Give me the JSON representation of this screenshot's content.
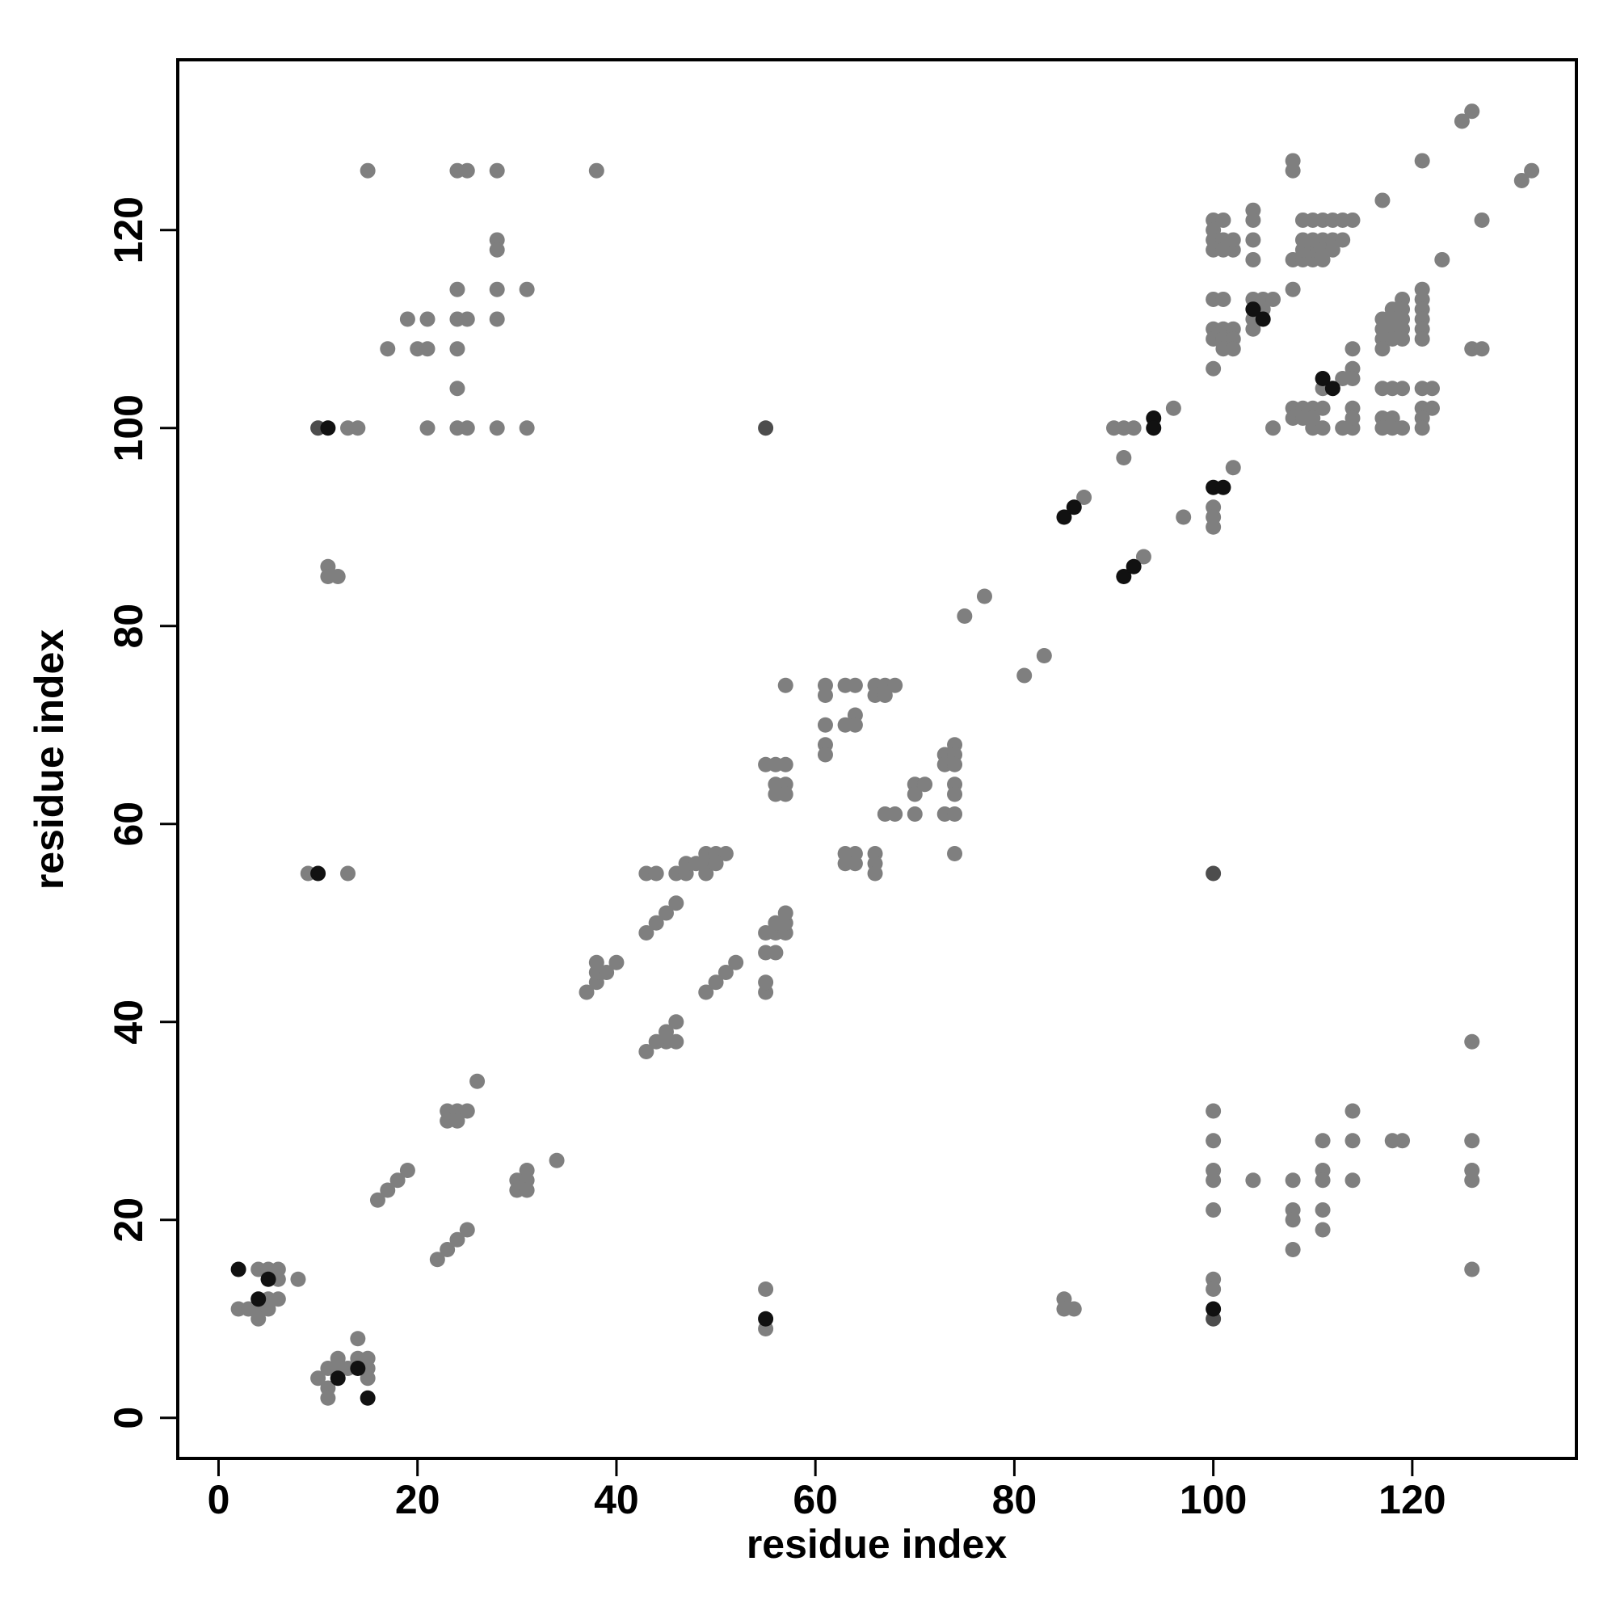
{
  "chart_data": {
    "type": "scatter",
    "xlabel": "residue index",
    "ylabel": "residue index",
    "xlim": [
      -4.1,
      136.5
    ],
    "ylim": [
      -4.1,
      137.2
    ],
    "xticks": [
      0,
      20,
      40,
      60,
      80,
      100,
      120
    ],
    "yticks": [
      0,
      20,
      40,
      60,
      80,
      100,
      120
    ],
    "series": [
      {
        "color": "#7f7f7f",
        "x": [
          15,
          24,
          25,
          28,
          38,
          28,
          28,
          24,
          28,
          31,
          19,
          21,
          24,
          25,
          28,
          17,
          20,
          21,
          24,
          24,
          13,
          14,
          21,
          24,
          25,
          28,
          31,
          11,
          11,
          12,
          9,
          13,
          4,
          5,
          6,
          6,
          8,
          5,
          6,
          2,
          3,
          4,
          5,
          4,
          10,
          11,
          11,
          11,
          12,
          13,
          14,
          14,
          15,
          15,
          15,
          12,
          16,
          17,
          18,
          19,
          22,
          23,
          24,
          25,
          23,
          23,
          24,
          24,
          25,
          26,
          30,
          30,
          31,
          31,
          31,
          34,
          37,
          38,
          38,
          38,
          39,
          40,
          43,
          44,
          45,
          45,
          46,
          46,
          43,
          44,
          45,
          46,
          43,
          44,
          46,
          47,
          47,
          48,
          49,
          49,
          50,
          51,
          49,
          50,
          49,
          50,
          51,
          52,
          55,
          55,
          55,
          56,
          55,
          56,
          56,
          57,
          57,
          57,
          55,
          56,
          57,
          56,
          57,
          56,
          57,
          57,
          61,
          61,
          61,
          61,
          61,
          63,
          64,
          63,
          64,
          64,
          66,
          66,
          67,
          67,
          68,
          63,
          63,
          64,
          64,
          66,
          66,
          66,
          67,
          68,
          70,
          70,
          71,
          70,
          73,
          73,
          74,
          74,
          74,
          73,
          74,
          74,
          74,
          74,
          75,
          77,
          81,
          83,
          87,
          93,
          90,
          91,
          92,
          91,
          96,
          97,
          100,
          100,
          100,
          102,
          100,
          101,
          102,
          100,
          100,
          100,
          101,
          101,
          102,
          104,
          104,
          104,
          104,
          100,
          101,
          100,
          100,
          101,
          101,
          101,
          102,
          102,
          102,
          100,
          104,
          104,
          104,
          105,
          105,
          106,
          108,
          108,
          108,
          109,
          110,
          110,
          109,
          109,
          109,
          110,
          111,
          112,
          113,
          114,
          110,
          111,
          111,
          112,
          112,
          113,
          111,
          108,
          117,
          121,
          123,
          125,
          126,
          127,
          131,
          132,
          126,
          127,
          114,
          114,
          114,
          113,
          111,
          106,
          108,
          108,
          109,
          109,
          110,
          110,
          111,
          110,
          111,
          113,
          114,
          114,
          114,
          117,
          118,
          119,
          117,
          117,
          118,
          118,
          119,
          117,
          117,
          117,
          117,
          118,
          118,
          118,
          118,
          119,
          119,
          119,
          119,
          119,
          121,
          121,
          121,
          121,
          121,
          121,
          121,
          122,
          121,
          122,
          121,
          121,
          100,
          100,
          100,
          100,
          100,
          100,
          100,
          104,
          108,
          108,
          108,
          108,
          111,
          111,
          111,
          111,
          111,
          114,
          114,
          114,
          118,
          119,
          126,
          126,
          126,
          126,
          126,
          85,
          85,
          86,
          55,
          55
        ],
        "y": [
          126,
          126,
          126,
          126,
          126,
          119,
          118,
          114,
          114,
          114,
          111,
          111,
          111,
          111,
          111,
          108,
          108,
          108,
          108,
          104,
          100,
          100,
          100,
          100,
          100,
          100,
          100,
          86,
          85,
          85,
          55,
          55,
          15,
          15,
          15,
          14,
          14,
          12,
          12,
          11,
          11,
          11,
          11,
          10,
          4,
          5,
          3,
          2,
          6,
          5,
          8,
          6,
          6,
          5,
          4,
          5,
          22,
          23,
          24,
          25,
          16,
          17,
          18,
          19,
          31,
          30,
          31,
          30,
          31,
          34,
          24,
          23,
          25,
          24,
          23,
          26,
          43,
          44,
          45,
          46,
          45,
          46,
          49,
          50,
          51,
          38,
          52,
          38,
          55,
          55,
          39,
          55,
          37,
          38,
          40,
          55,
          56,
          56,
          56,
          57,
          57,
          57,
          55,
          56,
          43,
          44,
          45,
          46,
          43,
          44,
          47,
          47,
          49,
          49,
          50,
          49,
          50,
          51,
          66,
          66,
          66,
          64,
          64,
          63,
          63,
          74,
          74,
          73,
          70,
          68,
          67,
          74,
          74,
          70,
          71,
          70,
          74,
          73,
          74,
          73,
          74,
          57,
          56,
          57,
          56,
          57,
          56,
          55,
          61,
          61,
          64,
          63,
          64,
          61,
          67,
          66,
          68,
          67,
          66,
          61,
          64,
          63,
          61,
          57,
          81,
          83,
          75,
          77,
          93,
          87,
          100,
          100,
          100,
          97,
          102,
          91,
          121,
          120,
          119,
          96,
          118,
          119,
          118,
          92,
          91,
          90,
          121,
          118,
          119,
          122,
          121,
          119,
          117,
          113,
          113,
          110,
          109,
          110,
          109,
          108,
          110,
          109,
          108,
          106,
          113,
          111,
          110,
          113,
          112,
          113,
          127,
          126,
          117,
          117,
          117,
          118,
          118,
          119,
          121,
          121,
          121,
          121,
          121,
          121,
          119,
          119,
          118,
          119,
          118,
          119,
          117,
          114,
          123,
          127,
          117,
          131,
          132,
          121,
          125,
          126,
          108,
          108,
          108,
          106,
          105,
          105,
          104,
          100,
          102,
          101,
          102,
          101,
          102,
          101,
          102,
          100,
          100,
          100,
          100,
          102,
          101,
          104,
          104,
          104,
          101,
          100,
          101,
          100,
          100,
          111,
          110,
          109,
          108,
          112,
          111,
          110,
          109,
          113,
          112,
          111,
          110,
          109,
          114,
          113,
          112,
          111,
          110,
          109,
          104,
          104,
          102,
          102,
          101,
          100,
          31,
          28,
          25,
          24,
          21,
          14,
          13,
          24,
          24,
          21,
          20,
          17,
          28,
          25,
          24,
          21,
          19,
          31,
          28,
          24,
          28,
          28,
          38,
          28,
          25,
          24,
          15,
          12,
          11,
          11,
          13,
          9
        ]
      },
      {
        "color": "#4d4d4d",
        "x": [
          10,
          55,
          100,
          100
        ],
        "y": [
          100,
          100,
          55,
          10
        ]
      },
      {
        "color": "#111111",
        "x": [
          11,
          10,
          2,
          5,
          4,
          12,
          14,
          15,
          85,
          86,
          91,
          92,
          94,
          94,
          100,
          101,
          104,
          105,
          111,
          112,
          100,
          55
        ],
        "y": [
          100,
          55,
          15,
          14,
          12,
          4,
          5,
          2,
          91,
          92,
          85,
          86,
          101,
          100,
          94,
          94,
          112,
          111,
          105,
          104,
          11,
          10
        ]
      }
    ]
  }
}
